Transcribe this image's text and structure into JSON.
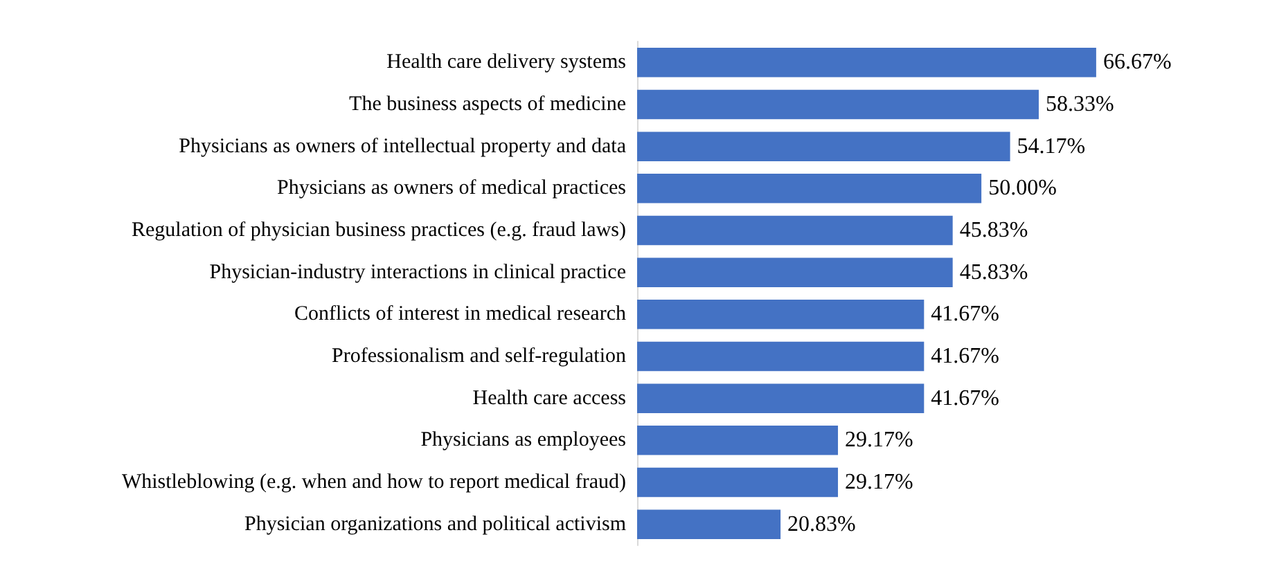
{
  "chart_data": {
    "type": "bar",
    "orientation": "horizontal",
    "categories": [
      "Health care delivery systems",
      "The business aspects of medicine",
      "Physicians as owners of intellectual property and data",
      "Physicians as owners of medical practices",
      "Regulation of physician business practices (e.g. fraud laws)",
      "Physician-industry interactions in clinical practice",
      "Conflicts of interest in medical research",
      "Professionalism and self-regulation",
      "Health care access",
      "Physicians as employees",
      "Whistleblowing (e.g. when and how to report medical fraud)",
      "Physician organizations and political activism"
    ],
    "values": [
      66.67,
      58.33,
      54.17,
      50.0,
      45.83,
      45.83,
      41.67,
      41.67,
      41.67,
      29.17,
      29.17,
      20.83
    ],
    "value_labels": [
      "66.67%",
      "58.33%",
      "54.17%",
      "50.00%",
      "45.83%",
      "45.83%",
      "41.67%",
      "41.67%",
      "41.67%",
      "29.17%",
      "29.17%",
      "20.83%"
    ],
    "color": "#4472c4"
  }
}
